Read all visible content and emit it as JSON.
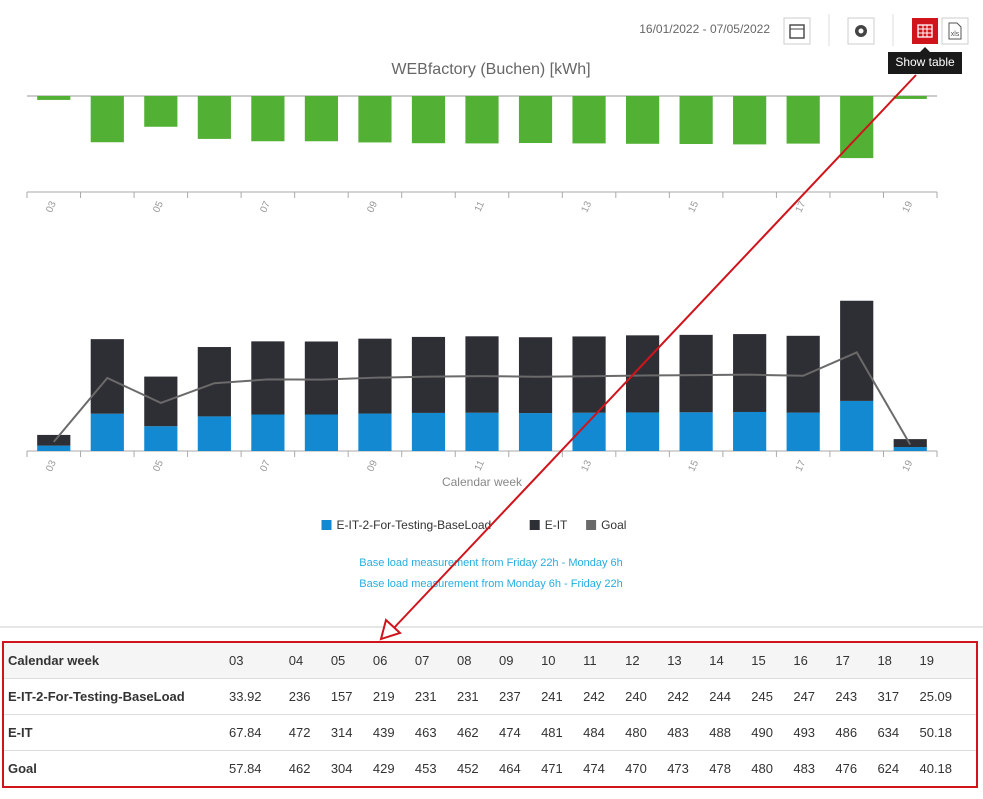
{
  "toolbar": {
    "date_range": "16/01/2022 - 07/05/2022",
    "tooltip": "Show table"
  },
  "chart_data": [
    {
      "type": "bar",
      "title": "WEBfactory (Buchen) [kWh]",
      "categories": [
        "03",
        null,
        "05",
        null,
        "07",
        null,
        "09",
        null,
        "11",
        null,
        "13",
        null,
        "15",
        null,
        "17",
        null,
        "19"
      ],
      "values": [
        -20,
        -236,
        -157,
        -219,
        -231,
        -231,
        -237,
        -241,
        -242,
        -240,
        -242,
        -244,
        -245,
        -247,
        -243,
        -317,
        -15
      ],
      "color": "#52b035",
      "ylim": [
        -490,
        0
      ]
    },
    {
      "type": "bar",
      "stacked": true,
      "x_label": "Calendar week",
      "legend": "bottom",
      "categories": [
        "03",
        null,
        "05",
        null,
        "07",
        null,
        "09",
        null,
        "11",
        null,
        "13",
        null,
        "15",
        null,
        "17",
        null,
        "19"
      ],
      "series": [
        {
          "name": "E-IT-2-For-Testing-BaseLoad",
          "color": "#1289d0",
          "values": [
            33.92,
            236,
            157,
            219,
            231,
            231,
            237,
            241,
            242,
            240,
            242,
            244,
            245,
            247,
            243,
            317,
            25.09
          ]
        },
        {
          "name": "E-IT",
          "color": "#2e2e35",
          "values": [
            67.84,
            472,
            314,
            439,
            463,
            462,
            474,
            481,
            484,
            480,
            483,
            488,
            490,
            493,
            486,
            634,
            50.18
          ]
        },
        {
          "name": "Goal",
          "type": "line",
          "color": "#6a6a6a",
          "values": [
            57.84,
            462,
            304,
            429,
            453,
            452,
            464,
            471,
            474,
            470,
            473,
            478,
            480,
            483,
            476,
            624,
            40.18
          ]
        }
      ],
      "ylim": [
        0,
        1500
      ]
    }
  ],
  "notes": [
    "Base load measurement from Friday 22h - Monday 6h",
    "Base load measurement from Monday 6h - Friday 22h"
  ],
  "table": {
    "rows": [
      [
        "Calendar week",
        "03",
        "04",
        "05",
        "06",
        "07",
        "08",
        "09",
        "10",
        "11",
        "12",
        "13",
        "14",
        "15",
        "16",
        "17",
        "18",
        "19"
      ],
      [
        "E-IT-2-For-Testing-BaseLoad",
        "33.92",
        "236",
        "157",
        "219",
        "231",
        "231",
        "237",
        "241",
        "242",
        "240",
        "242",
        "244",
        "245",
        "247",
        "243",
        "317",
        "25.09"
      ],
      [
        "E-IT",
        "67.84",
        "472",
        "314",
        "439",
        "463",
        "462",
        "474",
        "481",
        "484",
        "480",
        "483",
        "488",
        "490",
        "493",
        "486",
        "634",
        "50.18"
      ],
      [
        "Goal",
        "57.84",
        "462",
        "304",
        "429",
        "453",
        "452",
        "464",
        "471",
        "474",
        "470",
        "473",
        "478",
        "480",
        "483",
        "476",
        "624",
        "40.18"
      ]
    ]
  }
}
